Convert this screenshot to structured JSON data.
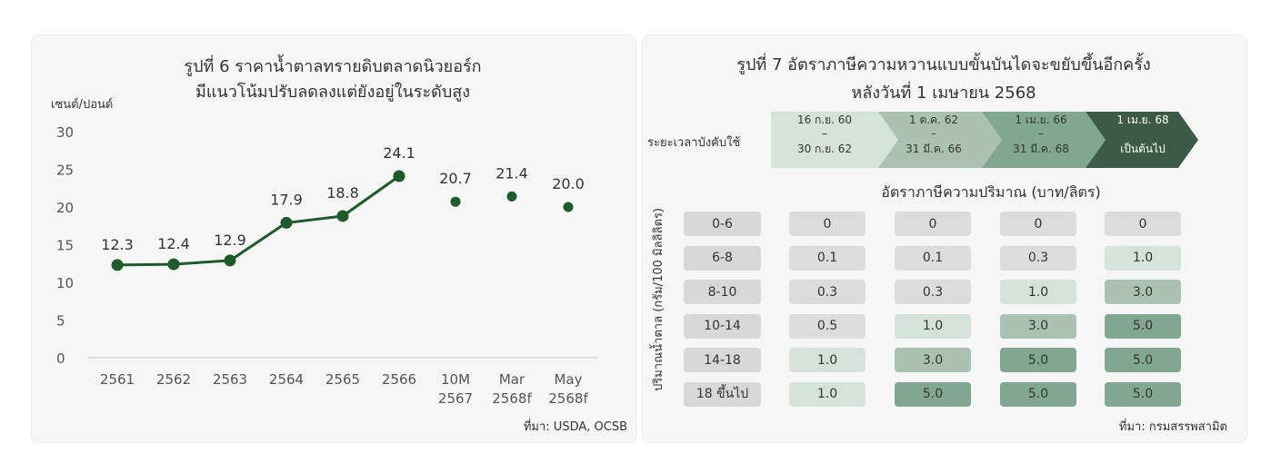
{
  "left_panel": {
    "title_line1": "รูปที่ 6  ราคาน้ำตาลทรายดิบตลาดนิวยอร์ก",
    "title_line2": "มีแนวโน้มปรับลดลงแต่ยังอยู่ในระดับสูง",
    "unit": "เซนต์/ปอนด์",
    "source": "ที่มา: USDA, OCSB"
  },
  "right_panel": {
    "title_line1": "รูปที่ 7 อัตราภาษีความหวานแบบขั้นบันไดจะขยับขึ้นอีกครั้ง",
    "title_line2": "หลังวันที่ 1 เมษายน 2568",
    "period_label": "ระยะเวลาบังคับใช้",
    "rate_header": "อัตราภาษีความปริมาณ (บาท/ลิตร)",
    "vertical_label": "ปริมาณน้ำตาล (กรัม/100 มิลลิลิตร)",
    "source": "ที่มา: กรมสรรพสามิต",
    "colors": {
      "level0": "#dcdcdc",
      "level1": "#d5e2d9",
      "level3": "#a9c2b1",
      "level5": "#82a791",
      "row_header": "#d8d8d8"
    }
  },
  "chart_data": [
    {
      "type": "line",
      "title": "รูปที่ 6  ราคาน้ำตาลทรายดิบตลาดนิวยอร์ก มีแนวโน้มปรับลดลงแต่ยังอยู่ในระดับสูง",
      "ylabel": "เซนต์/ปอนด์",
      "xlabel": "",
      "ylim": [
        0,
        30
      ],
      "yticks": [
        "0",
        "5",
        "10",
        "15",
        "20",
        "25",
        "30"
      ],
      "categories": [
        [
          "2561"
        ],
        [
          "2562"
        ],
        [
          "2563"
        ],
        [
          "2564"
        ],
        [
          "2565"
        ],
        [
          "2566"
        ],
        [
          "10M",
          "2567"
        ],
        [
          "Mar",
          "2568f"
        ],
        [
          "May",
          "2568f"
        ]
      ],
      "values": [
        12.3,
        12.4,
        12.9,
        17.9,
        18.8,
        24.1,
        20.7,
        21.4,
        20.0
      ],
      "labels": [
        "12.3",
        "12.4",
        "12.9",
        "17.9",
        "18.8",
        "24.1",
        "20.7",
        "21.4",
        "20.0"
      ],
      "line_through_index": 5,
      "color": "#1e5a2a",
      "grid": false
    },
    {
      "type": "table",
      "periods": [
        {
          "line1": "16 ก.ย. 60",
          "line2": "–",
          "line3": "30 ก.ย. 62",
          "color": "#d5e2d9",
          "text_color": "#333333"
        },
        {
          "line1": "1 ต.ค. 62",
          "line2": "–",
          "line3": "31 มี.ค. 66",
          "color": "#a9c2b1",
          "text_color": "#333333"
        },
        {
          "line1": "1 เม.ย. 66",
          "line2": "–",
          "line3": "31 มี.ค. 68",
          "color": "#82a791",
          "text_color": "#222222"
        },
        {
          "line1": "1 เม.ย. 68",
          "line2": "",
          "line3": "เป็นต้นไป",
          "color": "#3c5b47",
          "text_color": "#ffffff"
        }
      ],
      "rows": [
        {
          "range": "0-6",
          "rates": [
            "0",
            "0",
            "0",
            "0"
          ]
        },
        {
          "range": "6-8",
          "rates": [
            "0.1",
            "0.1",
            "0.3",
            "1.0"
          ]
        },
        {
          "range": "8-10",
          "rates": [
            "0.3",
            "0.3",
            "1.0",
            "3.0"
          ]
        },
        {
          "range": "10-14",
          "rates": [
            "0.5",
            "1.0",
            "3.0",
            "5.0"
          ]
        },
        {
          "range": "14-18",
          "rates": [
            "1.0",
            "3.0",
            "5.0",
            "5.0"
          ]
        },
        {
          "range": "18 ขึ้นไป",
          "rates": [
            "1.0",
            "5.0",
            "5.0",
            "5.0"
          ]
        }
      ]
    }
  ]
}
